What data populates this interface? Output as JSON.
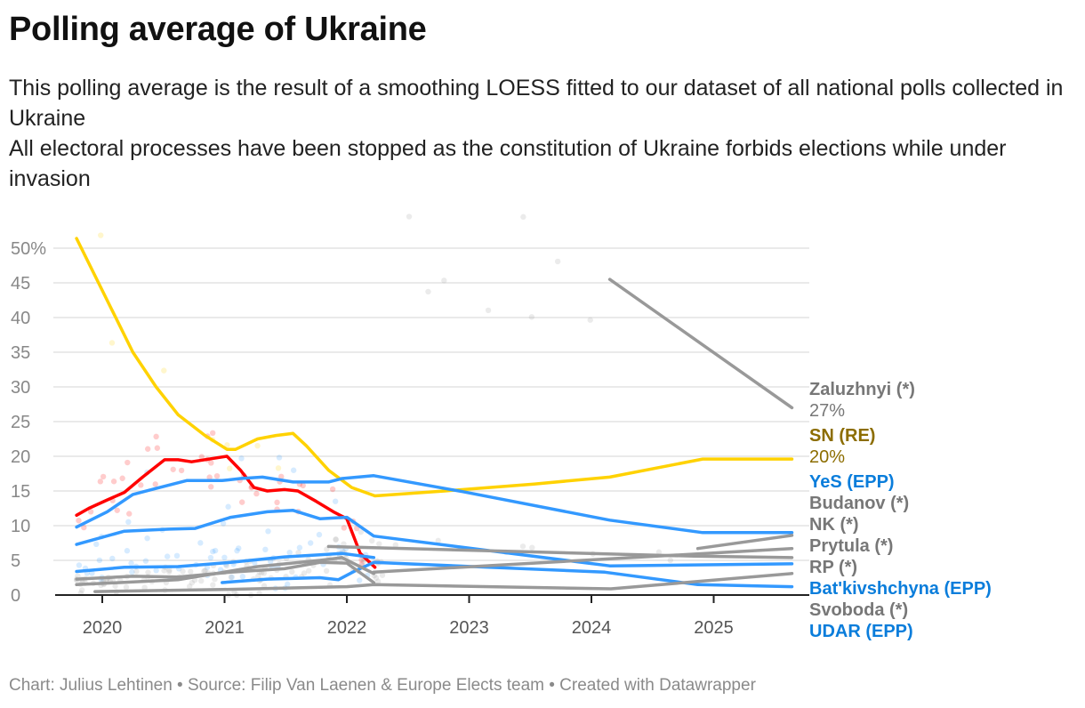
{
  "title": "Polling average of Ukraine",
  "subtitle": [
    "This polling average is the result of a smoothing LOESS fitted to our dataset of all national polls collected in Ukraine",
    "All electoral processes have been stopped as the constitution of Ukraine forbids elections while under invasion"
  ],
  "footer": "Chart: Julius Lehtinen • Source: Filip Van Laenen & Europe Elects team • Created with Datawrapper",
  "chart_data": {
    "type": "line",
    "ylim": [
      0,
      50
    ],
    "xlim": [
      2019.6,
      2025.7
    ],
    "y_ticks": [
      "50%",
      "45",
      "40",
      "35",
      "30",
      "25",
      "20",
      "15",
      "10",
      "5",
      "0"
    ],
    "y_tick_values": [
      50,
      45,
      40,
      35,
      30,
      25,
      20,
      15,
      10,
      5,
      0
    ],
    "x_ticks": [
      "2020",
      "2021",
      "2022",
      "2023",
      "2024",
      "2025"
    ],
    "x_tick_values": [
      2020,
      2021,
      2022,
      2023,
      2024,
      2025
    ],
    "grid": "horizontal",
    "colors": {
      "yellow": "#ffd200",
      "red": "#ff0000",
      "blue": "#3399ff",
      "gray": "#999999"
    },
    "series": [
      {
        "color": "yellow",
        "x": [
          2019.79,
          2020.25,
          2020.44,
          2020.62,
          2020.84,
          2021.02,
          2021.09,
          2021.27,
          2021.42,
          2021.56,
          2021.67,
          2021.85,
          2022.04,
          2022.23,
          2022.8,
          2023.53,
          2024.15,
          2024.91,
          2025.64
        ],
        "y": [
          51.4,
          35,
          30,
          26,
          23,
          21,
          21,
          22.5,
          23,
          23.3,
          21.5,
          18,
          15.5,
          14.3,
          15,
          16,
          17,
          19.6,
          19.6
        ]
      },
      {
        "color": "red",
        "x": [
          2019.79,
          2019.89,
          2020.04,
          2020.18,
          2020.33,
          2020.51,
          2020.62,
          2020.73,
          2020.91,
          2021.02,
          2021.13,
          2021.24,
          2021.35,
          2021.49,
          2021.6,
          2021.75,
          2021.89,
          2022.0,
          2022.11,
          2022.23
        ],
        "y": [
          11.5,
          12.5,
          13.7,
          14.8,
          17,
          19.5,
          19.5,
          19.2,
          19.7,
          20,
          18,
          15.5,
          15,
          15.2,
          15,
          13.5,
          12,
          11,
          6,
          4
        ]
      },
      {
        "color": "blue",
        "x": [
          2019.79,
          2020.04,
          2020.25,
          2020.47,
          2020.69,
          2020.98,
          2021.13,
          2021.31,
          2021.56,
          2021.85,
          2021.96,
          2022.22,
          2022.95,
          2024.15,
          2024.91,
          2025.64
        ],
        "y": [
          9.8,
          12,
          14.5,
          15.5,
          16.5,
          16.5,
          16.8,
          17,
          16.3,
          16.3,
          16.8,
          17.2,
          14.9,
          10.8,
          9,
          9
        ]
      },
      {
        "color": "blue",
        "x": [
          2019.79,
          2020.18,
          2020.55,
          2020.76,
          2021.05,
          2021.35,
          2021.56,
          2021.78,
          2022.0,
          2022.22,
          2024.15,
          2025.64
        ],
        "y": [
          7.3,
          9.2,
          9.5,
          9.6,
          11.2,
          12,
          12.2,
          11,
          11.2,
          8.5,
          4.2,
          4.5
        ]
      },
      {
        "color": "blue",
        "x": [
          2019.79,
          2020.18,
          2020.62,
          2021.05,
          2021.49,
          2021.78,
          2021.96,
          2022.22
        ],
        "y": [
          3.4,
          4,
          4.1,
          4.7,
          5.5,
          5.8,
          6,
          5.4
        ]
      },
      {
        "color": "blue",
        "x": [
          2020.98,
          2021.35,
          2021.78,
          2021.93,
          2022.07,
          2022.22,
          2024.11,
          2024.87,
          2025.64
        ],
        "y": [
          1.8,
          2.3,
          2.5,
          2.2,
          3.5,
          4.7,
          3.3,
          1.5,
          1.2
        ]
      },
      {
        "color": "gray",
        "x": [
          2024.15,
          2025.64
        ],
        "y": [
          45.5,
          27
        ]
      },
      {
        "color": "gray",
        "x": [
          2021.85,
          2024.84,
          2025.64
        ],
        "y": [
          7,
          5.6,
          5.4
        ]
      },
      {
        "color": "gray",
        "x": [
          2024.87,
          2025.64
        ],
        "y": [
          6.7,
          8.6
        ]
      },
      {
        "color": "gray",
        "x": [
          2022.22,
          2025.64
        ],
        "y": [
          3.3,
          6.7
        ]
      },
      {
        "color": "gray",
        "x": [
          2019.94,
          2020.98,
          2022.0,
          2022.22,
          2024.16,
          2025.64
        ],
        "y": [
          0.5,
          0.8,
          1.2,
          1.5,
          0.9,
          3.1
        ]
      },
      {
        "color": "gray",
        "x": [
          2019.79,
          2020.25,
          2020.62,
          2021.05,
          2021.49,
          2021.78,
          2022.0,
          2022.22
        ],
        "y": [
          2.3,
          2.7,
          2.6,
          3.3,
          3.8,
          4.7,
          4.6,
          1.8
        ]
      },
      {
        "color": "gray",
        "x": [
          2019.79,
          2020.62,
          2021.27,
          2021.78,
          2021.96,
          2022.22
        ],
        "y": [
          1.5,
          2.2,
          4.1,
          5,
          5.4,
          3.1
        ]
      }
    ],
    "labels": [
      {
        "name": "Zaluzhnyi (*)",
        "value": "27%",
        "color": "#777777"
      },
      {
        "name": "SN (RE)",
        "value": "20%",
        "color": "#8c6d00"
      },
      {
        "name": "YeS (EPP)",
        "value": "",
        "color": "#0a7ddb"
      },
      {
        "name": "Budanov (*)",
        "value": "",
        "color": "#777777"
      },
      {
        "name": "NK (*)",
        "value": "",
        "color": "#777777"
      },
      {
        "name": "Prytula (*)",
        "value": "",
        "color": "#777777"
      },
      {
        "name": "RP (*)",
        "value": "",
        "color": "#777777"
      },
      {
        "name": "Bat'kivshchyna (EPP)",
        "value": "",
        "color": "#0a7ddb"
      },
      {
        "name": "Svoboda (*)",
        "value": "",
        "color": "#777777"
      },
      {
        "name": "UDAR (EPP)",
        "value": "",
        "color": "#0a7ddb"
      }
    ]
  }
}
